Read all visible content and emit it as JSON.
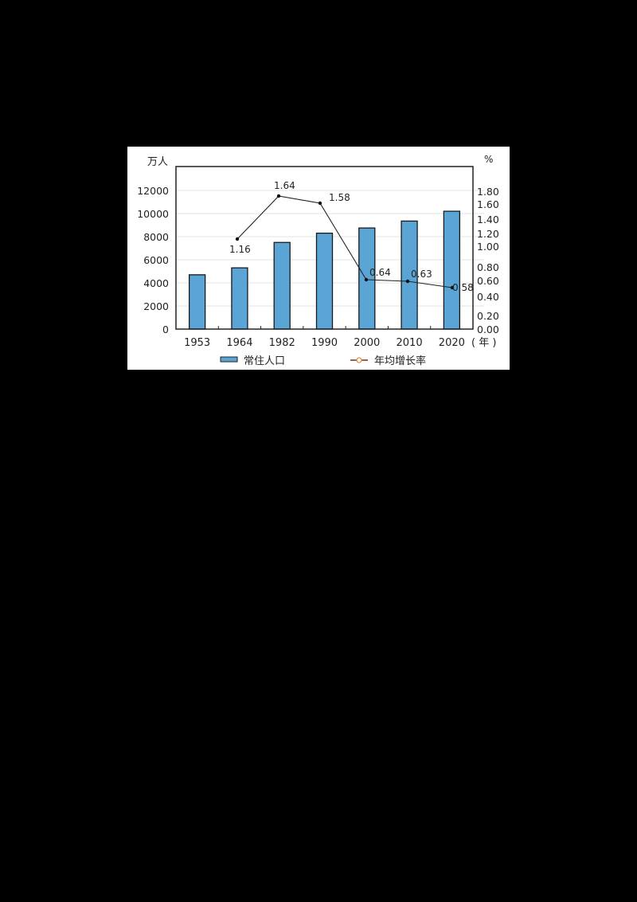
{
  "chart_data": {
    "type": "bar+line",
    "title": "",
    "xlabel": "(年)",
    "ylabel_left": "万人",
    "ylabel_right": "%",
    "categories": [
      "1953",
      "1964",
      "1982",
      "1990",
      "2000",
      "2010",
      "2020"
    ],
    "series": [
      {
        "name": "常住人口",
        "type": "bar",
        "axis": "left",
        "color": "#5aa5d6",
        "values": [
          4700,
          5300,
          7500,
          8300,
          8750,
          9350,
          10200
        ]
      },
      {
        "name": "年均增长率",
        "type": "line",
        "axis": "right",
        "color": "#222222",
        "values": [
          null,
          1.16,
          1.64,
          1.58,
          0.64,
          0.63,
          0.58
        ],
        "labels": [
          "",
          "1.16",
          "1.64",
          "1.58",
          "0.64",
          "0.63",
          "0.58"
        ]
      }
    ],
    "left_axis": {
      "ylim": [
        0,
        12000
      ],
      "ticks": [
        "0",
        "2000",
        "4000",
        "6000",
        "8000",
        "10000",
        "12000"
      ]
    },
    "right_axis": {
      "ticks": [
        "0.00",
        "0.20",
        "0.40",
        "0.60",
        "0.80",
        "1.00",
        "1.20",
        "1.40",
        "1.60",
        "1.80"
      ]
    },
    "grid": true,
    "legend_position": "bottom"
  },
  "labels": {
    "left_unit": "万人",
    "right_unit": "%",
    "x_unit": "( 年 )",
    "legend_bar": "常住人口",
    "legend_line": "年均增长率"
  }
}
